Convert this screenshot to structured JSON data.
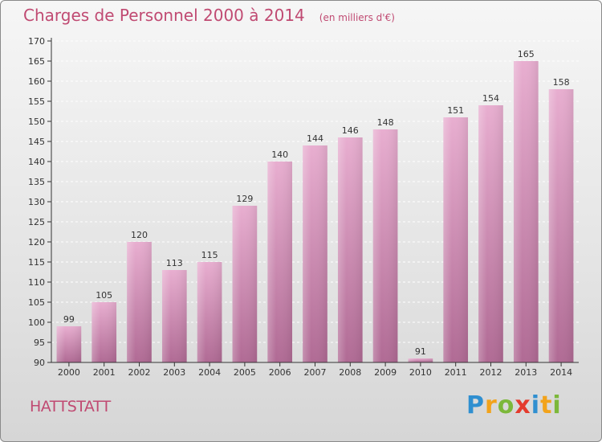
{
  "header": {
    "title": "Charges de Personnel 2000 à 2014",
    "subtitle": "(en milliers d'€)"
  },
  "place": "HATTSTATT",
  "brand": {
    "name": "Proxiti",
    "letters": [
      {
        "ch": "P",
        "color": "#2f8fd0"
      },
      {
        "ch": "r",
        "color": "#f2a31b"
      },
      {
        "ch": "o",
        "color": "#7cb83a"
      },
      {
        "ch": "x",
        "color": "#e43b2d"
      },
      {
        "ch": "i",
        "color": "#2f8fd0"
      },
      {
        "ch": "t",
        "color": "#f2a31b"
      },
      {
        "ch": "i",
        "color": "#7cb83a"
      }
    ]
  },
  "colors": {
    "title": "#c04a72",
    "bar_top": "#e8aed0",
    "bar_bottom": "#b06a94",
    "axis": "#333333",
    "grid": "#ffffff"
  },
  "chart_data": {
    "type": "bar",
    "categories": [
      "2000",
      "2001",
      "2002",
      "2003",
      "2004",
      "2005",
      "2006",
      "2007",
      "2008",
      "2009",
      "2010",
      "2011",
      "2012",
      "2013",
      "2014"
    ],
    "values": [
      99,
      105,
      120,
      113,
      115,
      129,
      140,
      144,
      146,
      148,
      91,
      151,
      154,
      165,
      158
    ],
    "ylim": [
      90,
      170
    ],
    "yticks": [
      90,
      95,
      100,
      105,
      110,
      115,
      120,
      125,
      130,
      135,
      140,
      145,
      150,
      155,
      160,
      165,
      170
    ],
    "grid": "horizontal dashed",
    "legend": "none"
  }
}
